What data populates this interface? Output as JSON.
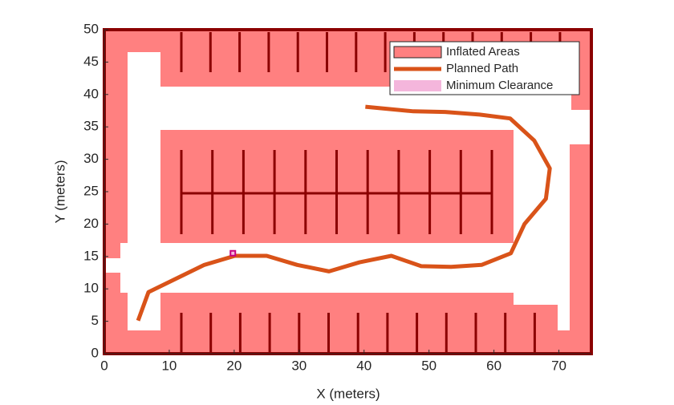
{
  "chart_data": {
    "type": "line",
    "xlabel": "X (meters)",
    "ylabel": "Y (meters)",
    "xlim": [
      0,
      75
    ],
    "xticks": [
      0,
      10,
      20,
      30,
      40,
      50,
      60,
      70
    ],
    "ylim": [
      0,
      50
    ],
    "yticks": [
      0,
      5,
      10,
      15,
      20,
      25,
      30,
      35,
      40,
      45,
      50
    ],
    "legend": "northeast",
    "series": [
      {
        "name": "Inflated Areas",
        "color": "#ff8080"
      },
      {
        "name": "Planned Path",
        "color": "#d95319",
        "x": [
          5.2,
          6.8,
          15.4,
          20.1,
          25,
          29.7,
          34.6,
          39.3,
          44.2,
          48.8,
          53.4,
          58.1,
          62.6,
          64.7,
          68,
          68.6,
          66.2,
          62.5,
          57.8,
          52.5,
          47.6,
          40.2
        ],
        "values": [
          5.1,
          9.5,
          13.7,
          15.1,
          15.1,
          13.7,
          12.7,
          14.1,
          15.1,
          13.5,
          13.4,
          13.7,
          15.5,
          20,
          23.9,
          28.6,
          32.9,
          36.3,
          36.9,
          37.3,
          37.4,
          38.1
        ]
      },
      {
        "name": "Minimum Clearance",
        "color": "#f4b6dc",
        "x": [
          19.8
        ],
        "values": [
          15.5
        ]
      }
    ]
  }
}
